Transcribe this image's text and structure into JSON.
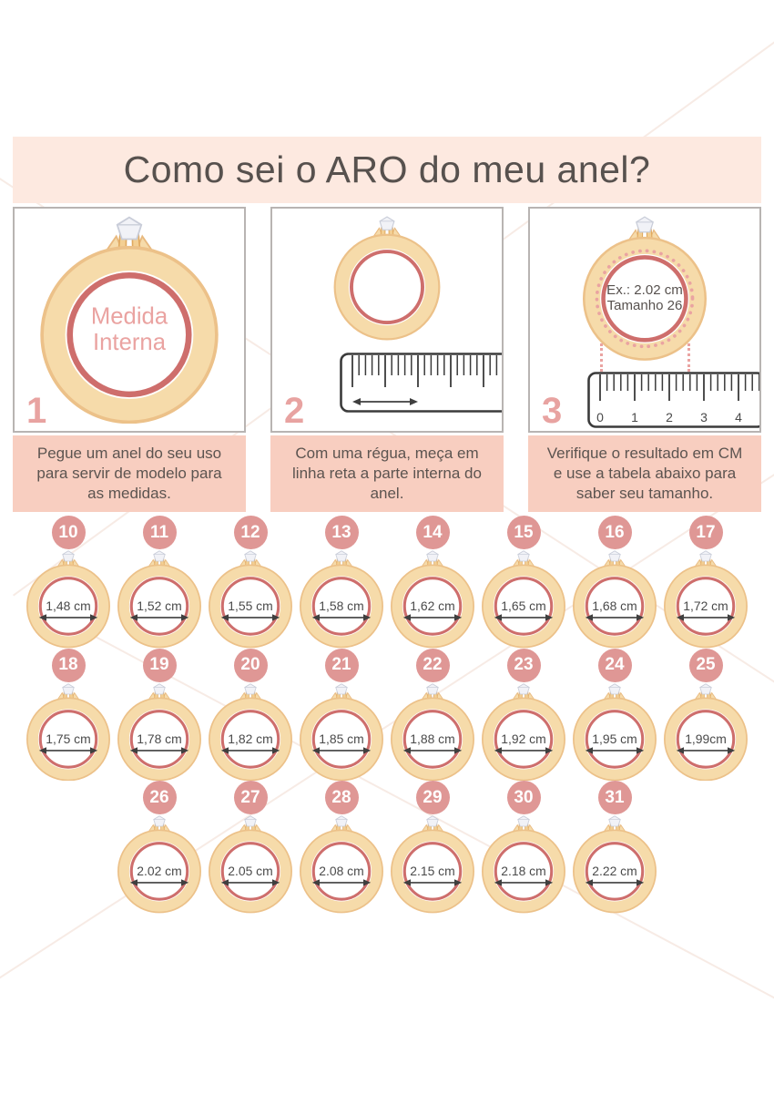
{
  "header": {
    "title": "Como sei o ARO do meu anel?"
  },
  "steps": [
    {
      "number": "1",
      "ring_lines": [
        "Medida",
        "Interna"
      ],
      "caption": "Pegue um anel do seu uso para servir de modelo para as medidas."
    },
    {
      "number": "2",
      "caption": "Com uma régua, meça em linha reta a parte interna do anel."
    },
    {
      "number": "3",
      "ring_lines": [
        "Ex.: 2.02 cm",
        "Tamanho 26"
      ],
      "ruler_numbers": [
        "0",
        "1",
        "2",
        "3",
        "4"
      ],
      "caption": "Verifique o resultado em CM e use a tabela abaixo para saber seu tamanho."
    }
  ],
  "size_chart": {
    "rows": [
      [
        {
          "size": "10",
          "diameter": "1,48 cm"
        },
        {
          "size": "11",
          "diameter": "1,52 cm"
        },
        {
          "size": "12",
          "diameter": "1,55 cm"
        },
        {
          "size": "13",
          "diameter": "1,58 cm"
        },
        {
          "size": "14",
          "diameter": "1,62 cm"
        },
        {
          "size": "15",
          "diameter": "1,65 cm"
        },
        {
          "size": "16",
          "diameter": "1,68 cm"
        },
        {
          "size": "17",
          "diameter": "1,72 cm"
        }
      ],
      [
        {
          "size": "18",
          "diameter": "1,75 cm"
        },
        {
          "size": "19",
          "diameter": "1,78 cm"
        },
        {
          "size": "20",
          "diameter": "1,82 cm"
        },
        {
          "size": "21",
          "diameter": "1,85 cm"
        },
        {
          "size": "22",
          "diameter": "1,88 cm"
        },
        {
          "size": "23",
          "diameter": "1,92 cm"
        },
        {
          "size": "24",
          "diameter": "1,95 cm"
        },
        {
          "size": "25",
          "diameter": "1,99cm"
        }
      ],
      [
        {
          "size": "26",
          "diameter": "2.02 cm"
        },
        {
          "size": "27",
          "diameter": "2.05 cm"
        },
        {
          "size": "28",
          "diameter": "2.08 cm"
        },
        {
          "size": "29",
          "diameter": "2.15 cm"
        },
        {
          "size": "30",
          "diameter": "2.18 cm"
        },
        {
          "size": "31",
          "diameter": "2.22 cm"
        }
      ]
    ]
  },
  "colors": {
    "header_bg": "#fde9e0",
    "caption_bg": "#f8cec0",
    "badge": "#df9795",
    "ring_gold": "#f6dbaa",
    "ring_gold_edge": "#ecc189",
    "ring_inner_stroke": "#ce6e6c",
    "accent_text": "#e8a3a1",
    "dark_text": "#57514e"
  }
}
